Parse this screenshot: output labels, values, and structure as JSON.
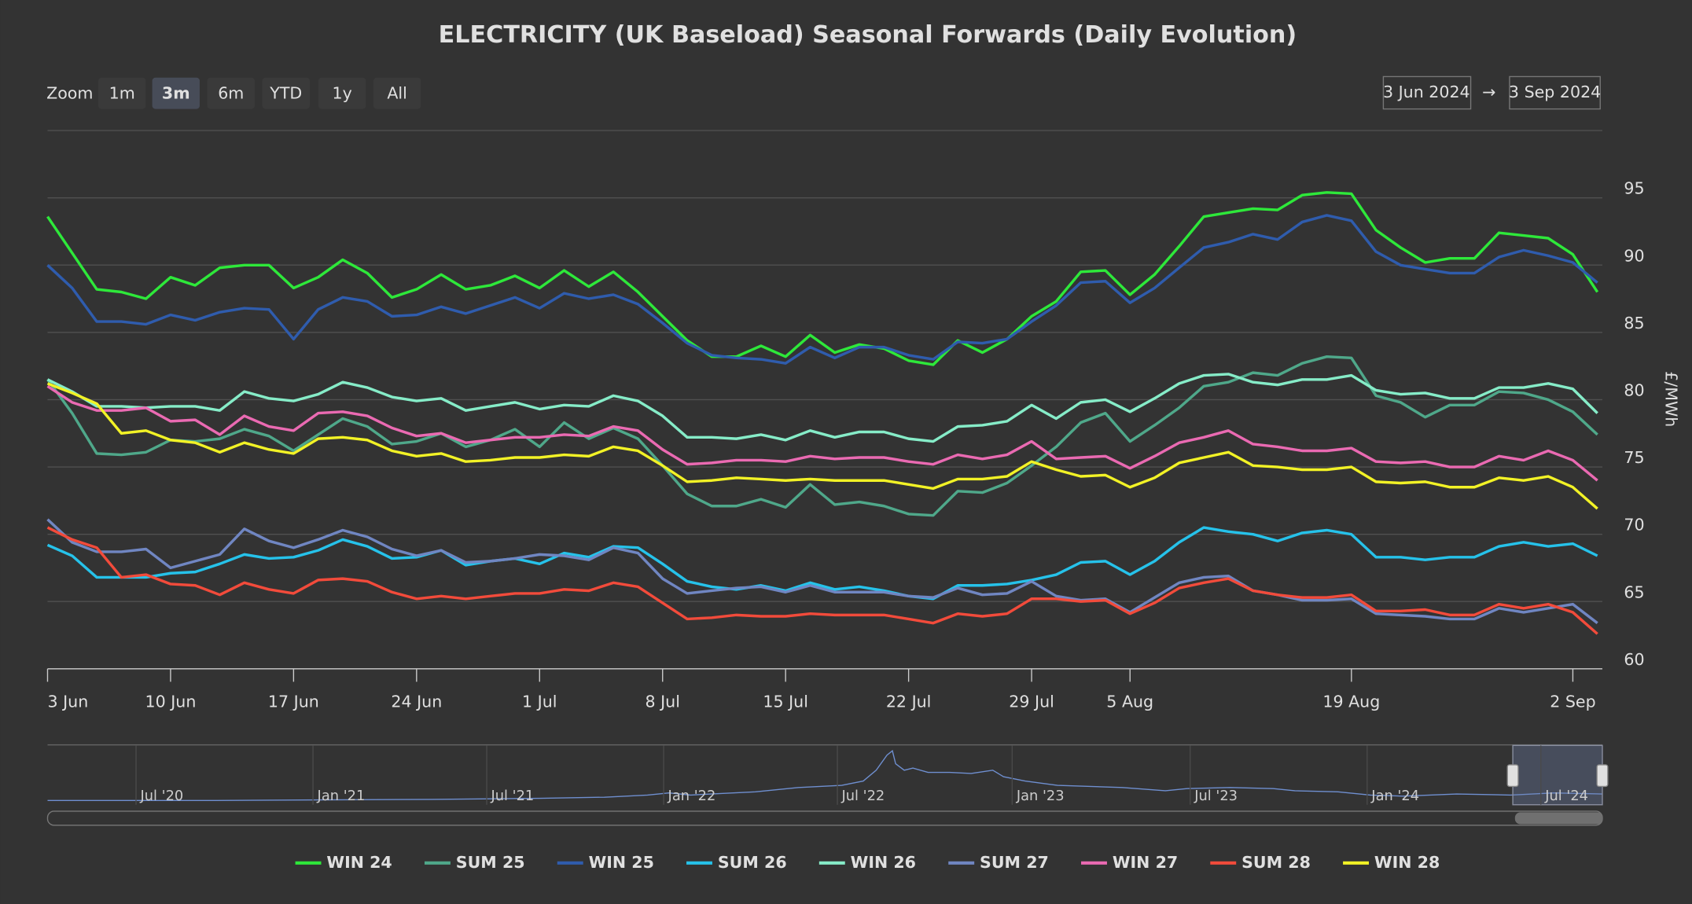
{
  "chart_data": {
    "type": "line",
    "title": "ELECTRICITY (UK Baseload) Seasonal Forwards (Daily Evolution)",
    "y_axis_label": "£/MWh",
    "zoom": {
      "label": "Zoom",
      "buttons": [
        "1m",
        "3m",
        "6m",
        "YTD",
        "1y",
        "All"
      ],
      "selected": 1
    },
    "range": {
      "from": "3 Jun 2024",
      "arrow": "→",
      "to": "3 Sep 2024"
    },
    "navigator": {
      "labels": [
        "Jul '20",
        "Jan '21",
        "Jul '21",
        "Jan '22",
        "Jul '22",
        "Jan '23",
        "Jul '23",
        "Jan '24",
        "Jul '24"
      ]
    },
    "categories": [
      "3 Jun",
      null,
      null,
      null,
      null,
      "10 Jun",
      null,
      null,
      null,
      null,
      "17 Jun",
      null,
      null,
      null,
      null,
      "24 Jun",
      null,
      null,
      null,
      null,
      "1 Jul",
      null,
      null,
      null,
      null,
      "8 Jul",
      null,
      null,
      null,
      null,
      "15 Jul",
      null,
      null,
      null,
      null,
      "22 Jul",
      null,
      null,
      null,
      null,
      "29 Jul",
      null,
      null,
      null,
      "5 Aug",
      null,
      null,
      null,
      null,
      null,
      null,
      null,
      null,
      "19 Aug",
      null,
      null,
      null,
      null,
      null,
      null,
      null,
      null,
      "2 Sep",
      null
    ],
    "ylim": [
      60,
      100
    ],
    "yticks": [
      60,
      65,
      70,
      75,
      80,
      85,
      90,
      95
    ],
    "grid": true,
    "legend": "bottom",
    "series": [
      {
        "name": "WIN 24",
        "color": "#2ee83a",
        "values": [
          93.6,
          90.9,
          88.2,
          88.0,
          87.5,
          89.1,
          88.5,
          89.8,
          90.0,
          90.0,
          88.3,
          89.1,
          90.4,
          89.4,
          87.6,
          88.2,
          89.3,
          88.2,
          88.5,
          89.2,
          88.3,
          89.6,
          88.4,
          89.5,
          88.0,
          86.2,
          84.4,
          83.2,
          83.2,
          84.0,
          83.2,
          84.8,
          83.5,
          84.1,
          83.8,
          82.9,
          82.6,
          84.4,
          83.5,
          84.5,
          86.2,
          87.3,
          89.5,
          89.6,
          87.8,
          89.3,
          91.4,
          93.6,
          93.9,
          94.2,
          94.1,
          95.2,
          95.4,
          95.3,
          92.6,
          91.3,
          90.2,
          90.5,
          90.5,
          92.4,
          92.2,
          92.0,
          90.8,
          88.0
        ]
      },
      {
        "name": "SUM 25",
        "color": "#4fa88a",
        "values": [
          81.5,
          79.0,
          76.0,
          75.9,
          76.1,
          77.0,
          76.9,
          77.1,
          77.8,
          77.3,
          76.2,
          77.4,
          78.6,
          78.0,
          76.7,
          76.9,
          77.5,
          76.5,
          77.0,
          77.8,
          76.5,
          78.3,
          77.1,
          77.9,
          77.1,
          75.1,
          73.0,
          72.1,
          72.1,
          72.6,
          72.0,
          73.7,
          72.2,
          72.4,
          72.1,
          71.5,
          71.4,
          73.2,
          73.1,
          73.8,
          75.1,
          76.5,
          78.3,
          79.0,
          76.9,
          78.1,
          79.4,
          81.0,
          81.3,
          82.0,
          81.8,
          82.7,
          83.2,
          83.1,
          80.3,
          79.8,
          78.7,
          79.6,
          79.6,
          80.6,
          80.5,
          80.0,
          79.1,
          77.4
        ]
      },
      {
        "name": "WIN 25",
        "color": "#2f5cad",
        "values": [
          90.0,
          88.3,
          85.8,
          85.8,
          85.6,
          86.3,
          85.9,
          86.5,
          86.8,
          86.7,
          84.5,
          86.7,
          87.6,
          87.3,
          86.2,
          86.3,
          86.9,
          86.4,
          87.0,
          87.6,
          86.8,
          87.9,
          87.5,
          87.8,
          87.1,
          85.7,
          84.2,
          83.3,
          83.1,
          83.0,
          82.7,
          83.9,
          83.1,
          83.9,
          83.9,
          83.3,
          83.0,
          84.3,
          84.2,
          84.5,
          85.8,
          87.0,
          88.7,
          88.8,
          87.2,
          88.3,
          89.8,
          91.3,
          91.7,
          92.3,
          91.9,
          93.2,
          93.7,
          93.3,
          91.0,
          90.0,
          89.7,
          89.4,
          89.4,
          90.6,
          91.1,
          90.7,
          90.2,
          88.7
        ]
      },
      {
        "name": "SUM 26",
        "color": "#26c2ea",
        "values": [
          69.2,
          68.4,
          66.8,
          66.8,
          66.8,
          67.1,
          67.2,
          67.8,
          68.5,
          68.2,
          68.3,
          68.8,
          69.6,
          69.1,
          68.2,
          68.3,
          68.8,
          67.7,
          68.0,
          68.2,
          67.8,
          68.6,
          68.3,
          69.1,
          69.0,
          67.8,
          66.5,
          66.1,
          65.9,
          66.2,
          65.8,
          66.4,
          65.9,
          66.1,
          65.8,
          65.4,
          65.2,
          66.2,
          66.2,
          66.3,
          66.6,
          67.0,
          67.9,
          68.0,
          67.0,
          68.0,
          69.4,
          70.5,
          70.2,
          70.0,
          69.5,
          70.1,
          70.3,
          70.0,
          68.3,
          68.3,
          68.1,
          68.3,
          68.3,
          69.1,
          69.4,
          69.1,
          69.3,
          68.4
        ]
      },
      {
        "name": "WIN 26",
        "color": "#86ecc8",
        "values": [
          81.5,
          80.6,
          79.5,
          79.5,
          79.4,
          79.5,
          79.5,
          79.2,
          80.6,
          80.1,
          79.9,
          80.4,
          81.3,
          80.9,
          80.2,
          79.9,
          80.1,
          79.2,
          79.5,
          79.8,
          79.3,
          79.6,
          79.5,
          80.3,
          79.9,
          78.8,
          77.2,
          77.2,
          77.1,
          77.4,
          77.0,
          77.7,
          77.2,
          77.6,
          77.6,
          77.1,
          76.9,
          78.0,
          78.1,
          78.4,
          79.6,
          78.6,
          79.8,
          80.0,
          79.1,
          80.1,
          81.2,
          81.8,
          81.9,
          81.3,
          81.1,
          81.5,
          81.5,
          81.8,
          80.7,
          80.4,
          80.5,
          80.1,
          80.1,
          80.9,
          80.9,
          81.2,
          80.8,
          79.0
        ]
      },
      {
        "name": "SUM 27",
        "color": "#7086c2",
        "values": [
          71.1,
          69.4,
          68.7,
          68.7,
          68.9,
          67.5,
          68.0,
          68.5,
          70.4,
          69.5,
          69.0,
          69.6,
          70.3,
          69.8,
          68.9,
          68.4,
          68.8,
          67.9,
          68.0,
          68.2,
          68.5,
          68.4,
          68.1,
          69.0,
          68.6,
          66.7,
          65.6,
          65.8,
          66.0,
          66.1,
          65.7,
          66.2,
          65.7,
          65.7,
          65.7,
          65.4,
          65.3,
          66.0,
          65.5,
          65.6,
          66.5,
          65.4,
          65.1,
          65.2,
          64.2,
          65.3,
          66.4,
          66.8,
          66.9,
          65.8,
          65.5,
          65.1,
          65.1,
          65.2,
          64.1,
          64.0,
          63.9,
          63.7,
          63.7,
          64.5,
          64.2,
          64.5,
          64.8,
          63.4
        ]
      },
      {
        "name": "WIN 27",
        "color": "#ea6ab2",
        "values": [
          81.0,
          79.8,
          79.2,
          79.2,
          79.4,
          78.4,
          78.5,
          77.4,
          78.8,
          78.0,
          77.7,
          79.0,
          79.1,
          78.8,
          77.9,
          77.3,
          77.5,
          76.8,
          77.0,
          77.2,
          77.2,
          77.4,
          77.3,
          78.0,
          77.7,
          76.3,
          75.2,
          75.3,
          75.5,
          75.5,
          75.4,
          75.8,
          75.6,
          75.7,
          75.7,
          75.4,
          75.2,
          75.9,
          75.6,
          75.9,
          76.9,
          75.6,
          75.7,
          75.8,
          74.9,
          75.8,
          76.8,
          77.2,
          77.7,
          76.7,
          76.5,
          76.2,
          76.2,
          76.4,
          75.4,
          75.3,
          75.4,
          75.0,
          75.0,
          75.8,
          75.5,
          76.2,
          75.5,
          74.0
        ]
      },
      {
        "name": "SUM 28",
        "color": "#f24b3b",
        "values": [
          70.5,
          69.6,
          69.0,
          66.8,
          67.0,
          66.3,
          66.2,
          65.5,
          66.4,
          65.9,
          65.6,
          66.6,
          66.7,
          66.5,
          65.7,
          65.2,
          65.4,
          65.2,
          65.4,
          65.6,
          65.6,
          65.9,
          65.8,
          66.4,
          66.1,
          64.9,
          63.7,
          63.8,
          64.0,
          63.9,
          63.9,
          64.1,
          64.0,
          64.0,
          64.0,
          63.7,
          63.4,
          64.1,
          63.9,
          64.1,
          65.2,
          65.2,
          65.0,
          65.1,
          64.1,
          64.9,
          66.0,
          66.4,
          66.7,
          65.8,
          65.5,
          65.3,
          65.3,
          65.5,
          64.3,
          64.3,
          64.4,
          64.0,
          64.0,
          64.8,
          64.5,
          64.8,
          64.2,
          62.6
        ]
      },
      {
        "name": "WIN 28",
        "color": "#f2f226",
        "values": [
          81.2,
          80.5,
          79.7,
          77.5,
          77.7,
          77.0,
          76.8,
          76.1,
          76.8,
          76.3,
          76.0,
          77.1,
          77.2,
          77.0,
          76.2,
          75.8,
          76.0,
          75.4,
          75.5,
          75.7,
          75.7,
          75.9,
          75.8,
          76.5,
          76.2,
          75.1,
          73.9,
          74.0,
          74.2,
          74.1,
          74.0,
          74.1,
          74.0,
          74.0,
          74.0,
          73.7,
          73.4,
          74.1,
          74.1,
          74.3,
          75.4,
          74.8,
          74.3,
          74.4,
          73.5,
          74.2,
          75.3,
          75.7,
          76.1,
          75.1,
          75.0,
          74.8,
          74.8,
          75.0,
          73.9,
          73.8,
          73.9,
          73.5,
          73.5,
          74.2,
          74.0,
          74.3,
          73.5,
          71.9
        ]
      }
    ]
  }
}
